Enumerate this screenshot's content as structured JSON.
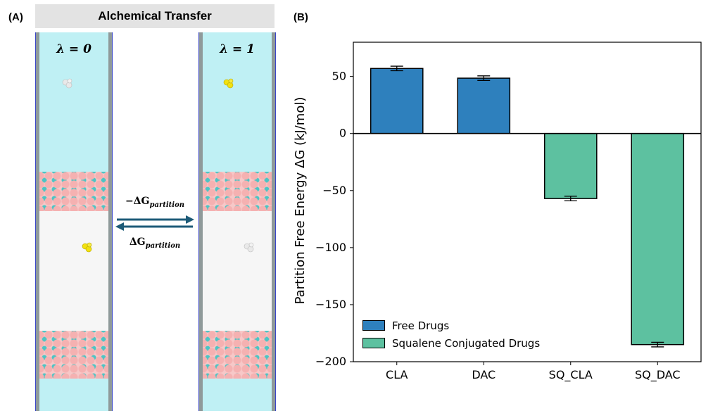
{
  "panel_a": {
    "label": "(A)",
    "title": "Alchemical Transfer",
    "left_state": "λ = 0",
    "right_state": "λ = 1",
    "forward_label_prefix": "−ΔG",
    "forward_label_sub": "partition",
    "reverse_label_prefix": "ΔG",
    "reverse_label_sub": "partition",
    "colors": {
      "water": "#bff0f4",
      "lipid_head": "#f5b1b1",
      "drug_active": "#f2e10f",
      "drug_ghost": "#e9e9e9",
      "arrow": "#1d5b78"
    }
  },
  "panel_b": {
    "label": "(B)"
  },
  "chart_data": {
    "type": "bar",
    "categories": [
      "CLA",
      "DAC",
      "SQ_CLA",
      "SQ_DAC"
    ],
    "values": [
      57,
      48.5,
      -57,
      -185
    ],
    "errors": [
      2,
      2,
      2,
      2
    ],
    "series_of_category": [
      "Free Drugs",
      "Free Drugs",
      "Squalene Conjugated Drugs",
      "Squalene Conjugated Drugs"
    ],
    "legend": [
      {
        "name": "Free Drugs",
        "color": "#2e80bd"
      },
      {
        "name": "Squalene Conjugated Drugs",
        "color": "#5dc1a0"
      }
    ],
    "ylabel": "Partition Free Energy ΔG (kJ/mol)",
    "xlabel": "",
    "ylim": [
      -200,
      80
    ],
    "yticks": [
      50,
      0,
      -50,
      -100,
      -150,
      -200
    ],
    "ytick_labels": [
      "50",
      "0",
      "−50",
      "−100",
      "−150",
      "−200"
    ],
    "legend_position": "lower-left",
    "grid": false
  }
}
